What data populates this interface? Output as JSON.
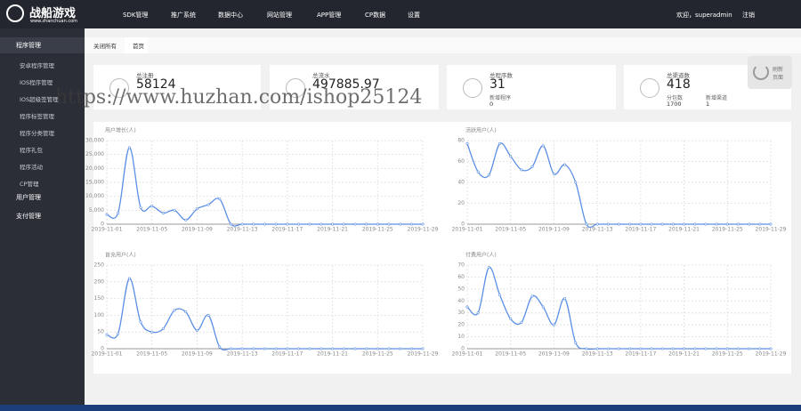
{
  "header": {
    "logo": "战船游戏",
    "site": "www.zhanchuan.com",
    "nav": [
      "SDK管理",
      "推广系统",
      "数据中心",
      "网站管理",
      "APP管理",
      "CP数据",
      "设置"
    ],
    "welcome": "欢迎，superadmin",
    "logout": "注销"
  },
  "sidebar": {
    "groups": [
      "程序管理",
      "用户管理",
      "支付管理"
    ],
    "items": [
      "安卓程序管理",
      "IOS程序管理",
      "IOS超级签管理",
      "程序标签管理",
      "程序分类管理",
      "程序礼包",
      "程序活动",
      "CP管理"
    ]
  },
  "tabs": [
    "关闭所有",
    "首页"
  ],
  "cards": [
    {
      "label": "总注册",
      "value": 58124,
      "subs": []
    },
    {
      "label": "总流水",
      "value": 497885.97,
      "subs": []
    },
    {
      "label": "总程序数",
      "value": 31,
      "subs": [
        {
          "label": "新增程序",
          "value": 0
        }
      ]
    },
    {
      "label": "总渠道数",
      "value": 418,
      "subs": [
        {
          "label": "分包数",
          "value": 1700
        },
        {
          "label": "新增渠道",
          "value": 1
        }
      ]
    }
  ],
  "refresh": "刷新页面",
  "watermark": "https://www.huzhan.com/ishop25124",
  "chart_data": [
    {
      "type": "line",
      "title": "用户增长(人)",
      "color": "#5b8fe6",
      "grid": true,
      "categories": [
        "2019-11-01",
        null,
        null,
        null,
        "2019-11-05",
        null,
        null,
        null,
        "2019-11-09",
        null,
        null,
        null,
        "2019-11-13",
        null,
        null,
        null,
        "2019-11-17",
        null,
        null,
        null,
        "2019-11-21",
        null,
        null,
        null,
        "2019-11-25",
        null,
        null,
        null,
        "2019-11-29"
      ],
      "values": [
        3500,
        4000,
        27500,
        6000,
        6500,
        4000,
        5000,
        1500,
        5500,
        7000,
        9000,
        0,
        0,
        0,
        0,
        0,
        0,
        0,
        0,
        0,
        0,
        0,
        0,
        0,
        0,
        0,
        0,
        0,
        0
      ],
      "ylim": [
        0,
        30000
      ],
      "yticks": [
        0,
        {
          "value": 5000,
          "label": "5,000"
        },
        {
          "value": 10000,
          "label": "10,000"
        },
        {
          "value": 15000,
          "label": "15,000"
        },
        {
          "value": 20000,
          "label": "20,000"
        },
        {
          "value": 25000,
          "label": "25,000"
        },
        {
          "value": 30000,
          "label": "30,000"
        }
      ]
    },
    {
      "type": "line",
      "title": "活跃用户(人)",
      "color": "#5b8fe6",
      "grid": true,
      "categories": [
        "2019-11-01",
        null,
        null,
        null,
        "2019-11-05",
        null,
        null,
        null,
        "2019-11-09",
        null,
        null,
        null,
        "2019-11-13",
        null,
        null,
        null,
        "2019-11-17",
        null,
        null,
        null,
        "2019-11-21",
        null,
        null,
        null,
        "2019-11-25",
        null,
        null,
        null,
        "2019-11-29"
      ],
      "values": [
        77,
        50,
        47,
        77,
        65,
        52,
        55,
        75,
        48,
        57,
        40,
        0,
        0,
        0,
        0,
        0,
        0,
        0,
        0,
        0,
        0,
        0,
        0,
        0,
        0,
        0,
        0,
        0,
        0
      ],
      "ylim": [
        0,
        80
      ],
      "yticks": [
        0,
        20,
        40,
        60,
        80
      ]
    },
    {
      "type": "line",
      "title": "首充用户(人)",
      "color": "#5b8fe6",
      "grid": true,
      "categories": [
        "2019-11-01",
        null,
        null,
        null,
        "2019-11-05",
        null,
        null,
        null,
        "2019-11-09",
        null,
        null,
        null,
        "2019-11-13",
        null,
        null,
        null,
        "2019-11-17",
        null,
        null,
        null,
        "2019-11-21",
        null,
        null,
        null,
        "2019-11-25",
        null,
        null,
        null,
        "2019-11-29"
      ],
      "values": [
        42,
        45,
        210,
        80,
        50,
        60,
        115,
        110,
        55,
        100,
        5,
        0,
        0,
        0,
        0,
        0,
        0,
        0,
        0,
        0,
        0,
        0,
        0,
        0,
        0,
        0,
        0,
        0,
        0
      ],
      "ylim": [
        0,
        250
      ],
      "yticks": [
        0,
        50,
        100,
        150,
        200,
        250
      ]
    },
    {
      "type": "line",
      "title": "付费用户(人)",
      "color": "#5b8fe6",
      "grid": true,
      "categories": [
        "2019-11-01",
        null,
        null,
        null,
        "2019-11-05",
        null,
        null,
        null,
        "2019-11-09",
        null,
        null,
        null,
        "2019-11-13",
        null,
        null,
        null,
        "2019-11-17",
        null,
        null,
        null,
        "2019-11-21",
        null,
        null,
        null,
        "2019-11-25",
        null,
        null,
        null,
        "2019-11-29"
      ],
      "values": [
        35,
        30,
        68,
        45,
        25,
        22,
        44,
        35,
        20,
        42,
        5,
        0,
        0,
        0,
        0,
        0,
        0,
        0,
        0,
        0,
        0,
        0,
        0,
        0,
        0,
        0,
        0,
        0,
        0
      ],
      "ylim": [
        0,
        70
      ],
      "yticks": [
        0,
        10,
        20,
        30,
        40,
        50,
        60,
        70
      ]
    }
  ]
}
